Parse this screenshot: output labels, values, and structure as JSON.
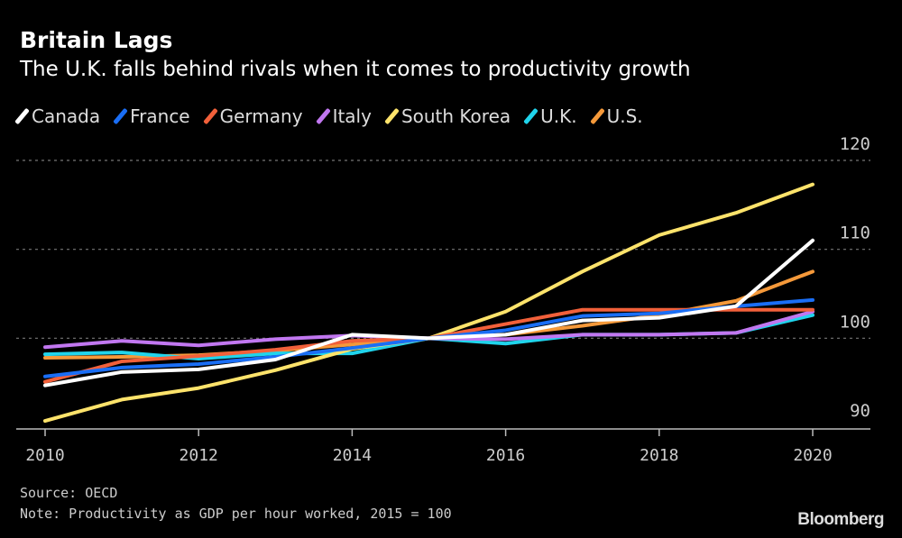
{
  "chart_data": {
    "type": "line",
    "title": "Britain Lags",
    "subtitle": "The U.K. falls behind rivals when it comes to productivity growth",
    "x": [
      2010,
      2011,
      2012,
      2013,
      2014,
      2015,
      2016,
      2017,
      2018,
      2019,
      2020
    ],
    "xticks": [
      "2010",
      "2012",
      "2014",
      "2016",
      "2018",
      "2020"
    ],
    "yticks": [
      "90",
      "100",
      "110",
      "120"
    ],
    "ylim": [
      90,
      120
    ],
    "xlim": [
      2010,
      2020
    ],
    "grid": "horizontal dashed",
    "legend": "top",
    "series": [
      {
        "name": "Canada",
        "color": "#ffffff",
        "values": [
          94.7,
          96.2,
          96.5,
          97.6,
          100.4,
          100,
          100.4,
          102.0,
          102.3,
          103.6,
          111.0
        ]
      },
      {
        "name": "France",
        "color": "#1a6ef5",
        "values": [
          95.7,
          96.7,
          97.1,
          97.9,
          98.9,
          100,
          100.9,
          102.5,
          102.8,
          103.6,
          104.3
        ]
      },
      {
        "name": "Germany",
        "color": "#f2603a",
        "values": [
          95.1,
          97.4,
          98.0,
          98.7,
          99.7,
          100,
          101.6,
          103.2,
          103.2,
          103.2,
          103.2
        ]
      },
      {
        "name": "Italy",
        "color": "#c177f0",
        "values": [
          99.0,
          99.7,
          99.2,
          99.9,
          100.3,
          100,
          99.9,
          100.4,
          100.4,
          100.6,
          103.0
        ]
      },
      {
        "name": "South Korea",
        "color": "#fde36b",
        "values": [
          90.7,
          93.1,
          94.4,
          96.4,
          98.8,
          100,
          103.0,
          107.5,
          111.6,
          114.1,
          117.3
        ]
      },
      {
        "name": "U.K.",
        "color": "#20d4ec",
        "values": [
          98.2,
          98.4,
          97.7,
          98.3,
          98.3,
          100,
          99.4,
          100.4,
          100.4,
          100.6,
          102.6
        ]
      },
      {
        "name": "U.S.",
        "color": "#f5993a",
        "values": [
          97.8,
          97.9,
          98.1,
          98.6,
          99.3,
          100,
          100.4,
          101.4,
          102.6,
          104.2,
          107.5
        ]
      }
    ]
  },
  "footer": {
    "source": "Source: OECD",
    "note": "Note: Productivity as GDP per hour worked, 2015 = 100",
    "logo": "Bloomberg"
  }
}
